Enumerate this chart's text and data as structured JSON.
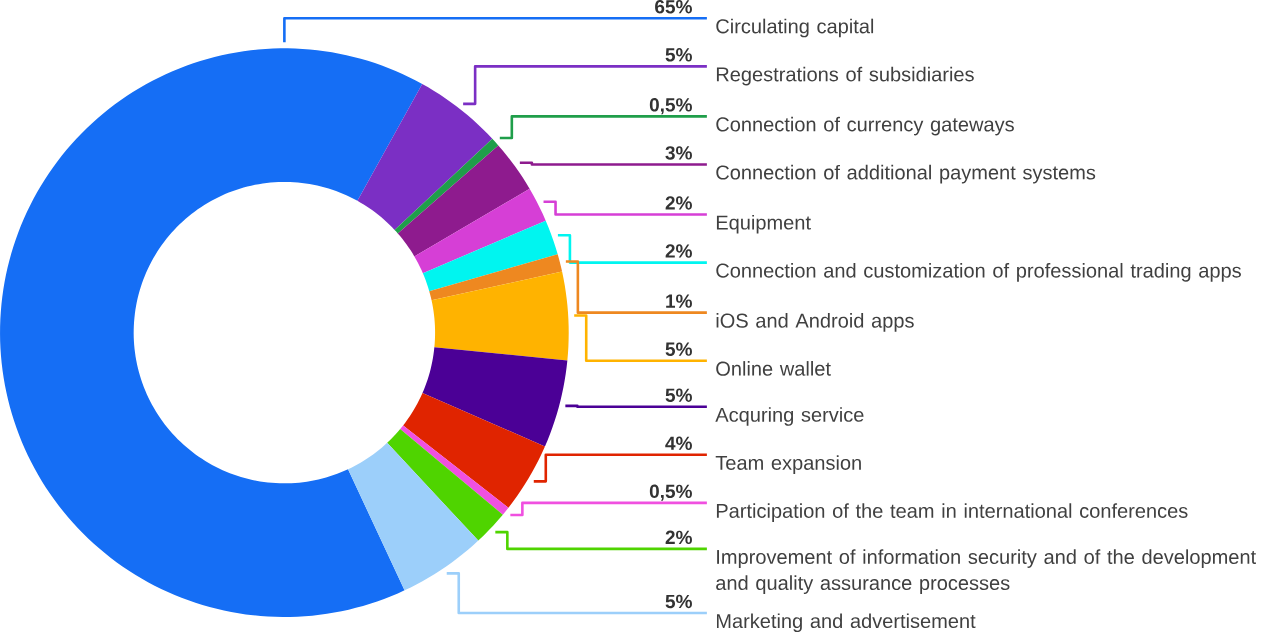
{
  "chart_data": {
    "type": "donut",
    "categories": [
      "Circulating capital",
      "Regestrations of subsidiaries",
      "Connection of currency gateways",
      "Connection of additional payment systems",
      "Equipment",
      "Connection and customization of professional trading apps",
      "iOS and Android apps",
      "Online wallet",
      "Acquring service",
      "Team expansion",
      "Participation of the team in international conferences",
      "Improvement of information security and of the development and quality assurance processes",
      "Marketing and advertisement"
    ],
    "values": [
      65,
      5,
      0.5,
      3,
      2,
      2,
      1,
      5,
      5,
      4,
      0.5,
      2,
      5
    ],
    "value_labels": [
      "65%",
      "5%",
      "0,5%",
      "3%",
      "2%",
      "2%",
      "1%",
      "5%",
      "5%",
      "4%",
      "0,5%",
      "2%",
      "5%"
    ],
    "colors": [
      "#156ef5",
      "#7b2fc4",
      "#1f9e4a",
      "#8e1b8e",
      "#d63fd6",
      "#00f5f0",
      "#ee8820",
      "#ffb300",
      "#4b0096",
      "#e02400",
      "#f050e0",
      "#4fd400",
      "#9ccffa"
    ]
  }
}
